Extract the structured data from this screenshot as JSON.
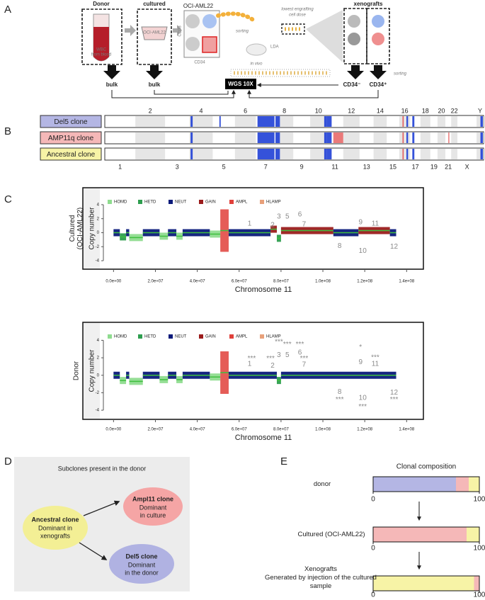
{
  "panel_labels": [
    "A",
    "B",
    "C",
    "D",
    "E"
  ],
  "panel_a": {
    "donor": "Donor",
    "cultured": "cultured",
    "facs_title": "OCI-AML22",
    "cd38": "CD38",
    "cd34": "CD34",
    "sorting": "sorting",
    "lda": "LDA",
    "in_vivo": "in vivo",
    "lowest_dose": [
      "lowest engrafting",
      "cell dose"
    ],
    "xenografts": "xenografts",
    "wbc": [
      "WBC",
      "from blood"
    ],
    "flask_label": "OCI-AML22",
    "bulk_donor": "bulk",
    "bulk_cultured": "bulk",
    "wgs": "WGS 10X",
    "cd34_neg": "CD34⁻",
    "cd34_pos": "CD34⁺",
    "sorting_xeno": "sorting"
  },
  "panel_b": {
    "clones": [
      {
        "name": "Del5 clone",
        "color": "#b4b6e4"
      },
      {
        "name": "AMP11q clone",
        "color": "#f5b8b8"
      },
      {
        "name": "Ancestral clone",
        "color": "#f7f3a6"
      }
    ],
    "chromosomes": [
      "1",
      "2",
      "3",
      "4",
      "5",
      "6",
      "7",
      "8",
      "9",
      "10",
      "11",
      "12",
      "13",
      "14",
      "15",
      "16",
      "17",
      "18",
      "19",
      "20",
      "21",
      "22",
      "X",
      "Y"
    ]
  },
  "chart_data": [
    {
      "type": "copy-number",
      "side_label": [
        "Cultured",
        "(OCI-AML22)"
      ],
      "ylabel": "Copy number",
      "xlabel": "Chromosome 11",
      "xlim": [
        -3500000,
        147000000
      ],
      "xticks": [
        {
          "value": 0,
          "label": "0.0e+00"
        },
        {
          "value": 20000000,
          "label": "2.0e+07"
        },
        {
          "value": 40000000,
          "label": "4.0e+07"
        },
        {
          "value": 60000000,
          "label": "6.0e+07"
        },
        {
          "value": 80000000,
          "label": "8.0e+07"
        },
        {
          "value": 100000000,
          "label": "1.0e+08"
        },
        {
          "value": 120000000,
          "label": "1.2e+08"
        },
        {
          "value": 140000000,
          "label": "1.4e+08"
        }
      ],
      "ylim": [
        -4.4,
        4.6
      ],
      "yticks": [
        -4,
        -2,
        0,
        2,
        4
      ],
      "legend": [
        {
          "name": "HOMD",
          "color": "#8fdc8f"
        },
        {
          "name": "HETD",
          "color": "#2e9e4f"
        },
        {
          "name": "NEUT",
          "color": "#0a1a7a"
        },
        {
          "name": "GAIN",
          "color": "#9b1c1c"
        },
        {
          "name": "AMPL",
          "color": "#e0403a"
        },
        {
          "name": "HLAMP",
          "color": "#e8a07a"
        }
      ],
      "segments": [
        {
          "start": 0,
          "end": 3000000,
          "value": 0,
          "class": "NEUT"
        },
        {
          "start": 3000000,
          "end": 6000000,
          "value": -0.6,
          "class": "HETD"
        },
        {
          "start": 6000000,
          "end": 7500000,
          "value": 0,
          "class": "NEUT"
        },
        {
          "start": 7500000,
          "end": 14000000,
          "value": -0.7,
          "class": "HOMD"
        },
        {
          "start": 14000000,
          "end": 22000000,
          "value": 0,
          "class": "NEUT"
        },
        {
          "start": 22000000,
          "end": 26000000,
          "value": -0.5,
          "class": "HOMD"
        },
        {
          "start": 26000000,
          "end": 30000000,
          "value": 0,
          "class": "NEUT"
        },
        {
          "start": 30000000,
          "end": 33000000,
          "value": -0.5,
          "class": "HOMD"
        },
        {
          "start": 33000000,
          "end": 46000000,
          "value": 0,
          "class": "NEUT"
        },
        {
          "start": 46000000,
          "end": 51000000,
          "value": -0.2,
          "class": "HOMD"
        },
        {
          "start": 51000000,
          "end": 55000000,
          "value": 0.3,
          "class": "AMPL"
        },
        {
          "start": 55000000,
          "end": 75000000,
          "value": 0,
          "class": "NEUT"
        },
        {
          "start": 75000000,
          "end": 78000000,
          "value": 0.5,
          "class": "GAIN"
        },
        {
          "start": 78000000,
          "end": 80000000,
          "value": -0.8,
          "class": "HETD"
        },
        {
          "start": 80000000,
          "end": 105000000,
          "value": 0.3,
          "class": "GAIN"
        },
        {
          "start": 105000000,
          "end": 117000000,
          "value": 0,
          "class": "NEUT"
        },
        {
          "start": 117000000,
          "end": 132000000,
          "value": 0.3,
          "class": "GAIN"
        },
        {
          "start": 132000000,
          "end": 135000000,
          "value": 0,
          "class": "NEUT"
        }
      ],
      "annotations": [
        "1",
        "2",
        "3",
        "5",
        "6",
        "7",
        "8",
        "9",
        "10",
        "11",
        "12"
      ]
    },
    {
      "type": "copy-number",
      "side_label": [
        "Donor"
      ],
      "ylabel": "Copy number",
      "xlabel": "Chromosome 11",
      "xlim": [
        -3500000,
        147000000
      ],
      "xticks": [
        {
          "value": 0,
          "label": "0.0e+00"
        },
        {
          "value": 20000000,
          "label": "2.0e+07"
        },
        {
          "value": 40000000,
          "label": "4.0e+07"
        },
        {
          "value": 60000000,
          "label": "6.0e+07"
        },
        {
          "value": 80000000,
          "label": "8.0e+07"
        },
        {
          "value": 100000000,
          "label": "1.0e+08"
        },
        {
          "value": 120000000,
          "label": "1.2e+08"
        },
        {
          "value": 140000000,
          "label": "1.4e+08"
        }
      ],
      "ylim": [
        -4.4,
        4.6
      ],
      "yticks": [
        -4,
        -2,
        0,
        2,
        4
      ],
      "legend": [
        {
          "name": "HOMD",
          "color": "#8fdc8f"
        },
        {
          "name": "HETD",
          "color": "#2e9e4f"
        },
        {
          "name": "NEUT",
          "color": "#0a1a7a"
        },
        {
          "name": "GAIN",
          "color": "#9b1c1c"
        },
        {
          "name": "AMPL",
          "color": "#e0403a"
        },
        {
          "name": "HLAMP",
          "color": "#e8a07a"
        }
      ],
      "segments": [
        {
          "start": 0,
          "end": 3000000,
          "value": 0,
          "class": "NEUT"
        },
        {
          "start": 3000000,
          "end": 6000000,
          "value": -0.6,
          "class": "HOMD"
        },
        {
          "start": 6000000,
          "end": 7500000,
          "value": 0,
          "class": "NEUT"
        },
        {
          "start": 7500000,
          "end": 14000000,
          "value": -0.7,
          "class": "HOMD"
        },
        {
          "start": 14000000,
          "end": 22000000,
          "value": 0,
          "class": "NEUT"
        },
        {
          "start": 22000000,
          "end": 26000000,
          "value": -0.5,
          "class": "HOMD"
        },
        {
          "start": 26000000,
          "end": 30000000,
          "value": 0,
          "class": "NEUT"
        },
        {
          "start": 30000000,
          "end": 33000000,
          "value": -0.5,
          "class": "HOMD"
        },
        {
          "start": 33000000,
          "end": 46000000,
          "value": 0,
          "class": "NEUT"
        },
        {
          "start": 46000000,
          "end": 51000000,
          "value": -0.2,
          "class": "HOMD"
        },
        {
          "start": 51000000,
          "end": 55000000,
          "value": 0.3,
          "class": "AMPL"
        },
        {
          "start": 55000000,
          "end": 78000000,
          "value": 0,
          "class": "NEUT"
        },
        {
          "start": 78000000,
          "end": 80000000,
          "value": -0.6,
          "class": "HETD"
        },
        {
          "start": 80000000,
          "end": 135000000,
          "value": 0,
          "class": "NEUT"
        }
      ],
      "annotations": [
        "***",
        "1",
        "***",
        "2",
        "***",
        "3",
        "***",
        "5",
        "***",
        "6",
        "***",
        "7",
        "8",
        "***",
        "*",
        "9",
        "10",
        "***",
        "***",
        "11",
        "12",
        "***"
      ]
    },
    {
      "type": "stacked-bar",
      "title": "Clonal composition",
      "xlim": [
        0,
        100
      ],
      "xticks": [
        0,
        100
      ],
      "bars": [
        {
          "label": [
            "donor"
          ],
          "segments": [
            {
              "color": "#b4b6e4",
              "value": 78
            },
            {
              "color": "#f5b8b8",
              "value": 12
            },
            {
              "color": "#f7f3a6",
              "value": 10
            }
          ]
        },
        {
          "label": [
            "Cultured  (OCI-AML22)"
          ],
          "segments": [
            {
              "color": "#f5b8b8",
              "value": 88
            },
            {
              "color": "#f7f3a6",
              "value": 12
            }
          ]
        },
        {
          "label": [
            "Xenografts",
            "Generated by injection of the cultured",
            "sample"
          ],
          "segments": [
            {
              "color": "#f7f3a6",
              "value": 95
            },
            {
              "color": "#f5b8b8",
              "value": 5
            }
          ]
        }
      ]
    }
  ],
  "panel_d": {
    "title": "Subclones present in the donor",
    "ampl11": {
      "name": "Ampl11 clone",
      "note": [
        "Dominant",
        "in culture"
      ]
    },
    "ancestral": {
      "name": "Ancestral clone",
      "note": [
        "Dominant in",
        "xenografts"
      ]
    },
    "del5": {
      "name": "Del5 clone",
      "note": [
        "Dominant",
        "in the donor"
      ]
    }
  }
}
